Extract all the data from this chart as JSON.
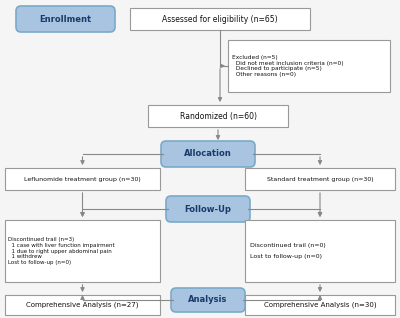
{
  "bg_color": "#f5f5f5",
  "box_edge_color": "#999999",
  "box_face_color": "#ffffff",
  "blue_box_face": "#a8c4e0",
  "blue_box_edge": "#7aaac8",
  "text_color": "#111111",
  "blue_text_color": "#1a3a6b",
  "arrow_color": "#888888",
  "enrollment_label": "Enrollment",
  "eligibility_text": "Assessed for eligibility (n=65)",
  "excluded_text": "Excluded (n=5)\n  Did not meet inclusion criteria (n=0)\n  Declined to participate (n=5)\n  Other reasons (n=0)",
  "randomized_text": "Randomized (n=60)",
  "allocation_label": "Allocation",
  "lefl_text": "Leflunomide treatment group (n=30)",
  "std_text": "Standard treatment group (n=30)",
  "followup_label": "Follow-Up",
  "disc_left_text": "Discontinued trail (n=3)\n  1 case with liver function impairment\n  1 due to right upper abdominal pain\n  1 withdrew\nLost to follow-up (n=0)",
  "disc_right_text": "Discontinued trail (n=0)\n\nLost to follow-up (n=0)",
  "analysis_label": "Analysis",
  "comp_left_text": "Comprehensive Analysis (n=27)",
  "comp_right_text": "Comprehensive Analysis (n=30)"
}
